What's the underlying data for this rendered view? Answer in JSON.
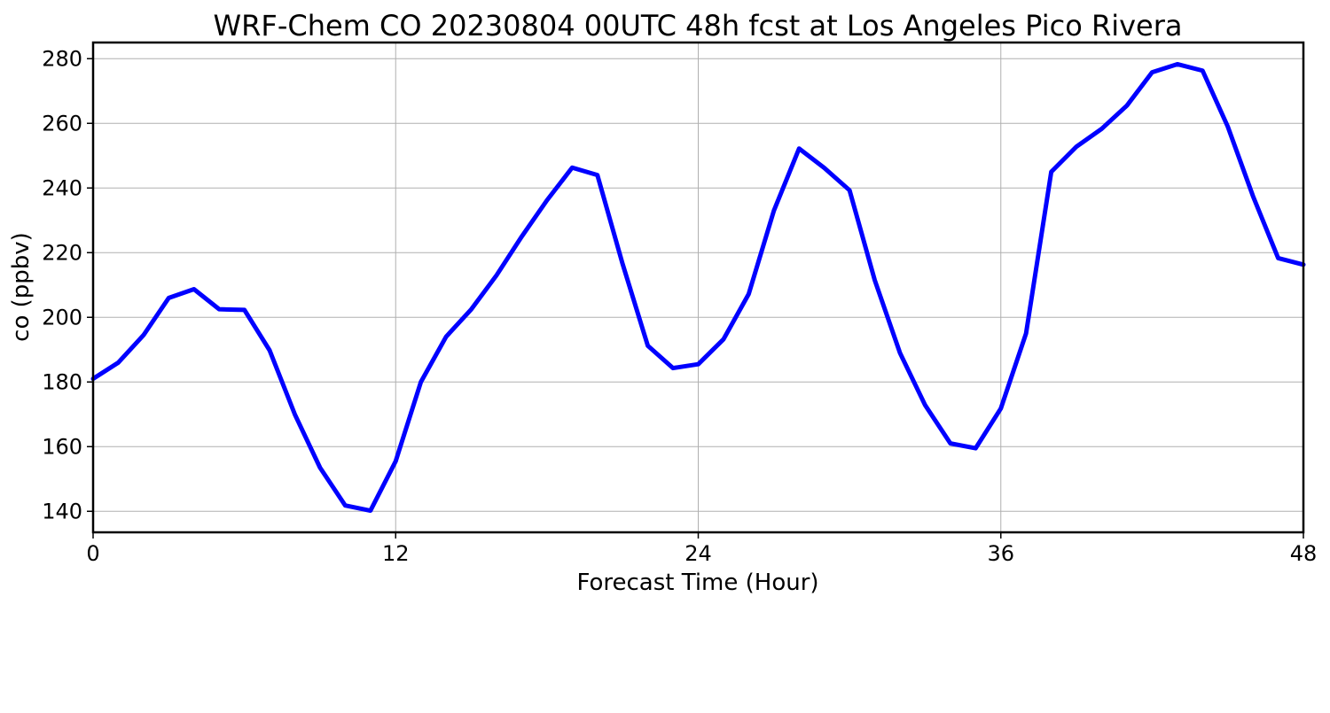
{
  "chart_data": {
    "type": "line",
    "title": "WRF-Chem CO  20230804 00UTC 48h fcst at Los Angeles Pico Rivera",
    "xlabel": "Forecast Time (Hour)",
    "ylabel": "co  (ppbv)",
    "xlim": [
      0,
      48
    ],
    "ylim": [
      133.5,
      285
    ],
    "x_ticks": [
      0,
      12,
      24,
      36,
      48
    ],
    "y_ticks": [
      140,
      160,
      180,
      200,
      220,
      240,
      260,
      280
    ],
    "grid": true,
    "legend": "none",
    "series": [
      {
        "color": "#0000ff",
        "x": [
          0,
          1,
          2,
          3,
          4,
          5,
          6,
          7,
          8,
          9,
          10,
          11,
          12,
          13,
          14,
          15,
          16,
          17,
          18,
          19,
          20,
          21,
          22,
          23,
          24,
          25,
          26,
          27,
          28,
          29,
          30,
          31,
          32,
          33,
          34,
          35,
          36,
          37,
          38,
          39,
          40,
          41,
          42,
          43,
          44,
          45,
          46,
          47,
          48
        ],
        "values": [
          181,
          186,
          194.5,
          206,
          208.7,
          202.5,
          202.3,
          189.8,
          170,
          153.5,
          141.8,
          140.2,
          155.5,
          180,
          194,
          202.5,
          213,
          225,
          236.2,
          246.3,
          244,
          216.5,
          191.2,
          184.3,
          185.5,
          193.2,
          207.2,
          233,
          252.2,
          246.2,
          239.3,
          211.5,
          189,
          172.8,
          161,
          159.5,
          171.8,
          195,
          245,
          252.8,
          258.3,
          265.5,
          275.8,
          278.3,
          276.3,
          259,
          237.5,
          218.3,
          216.3
        ]
      }
    ]
  }
}
